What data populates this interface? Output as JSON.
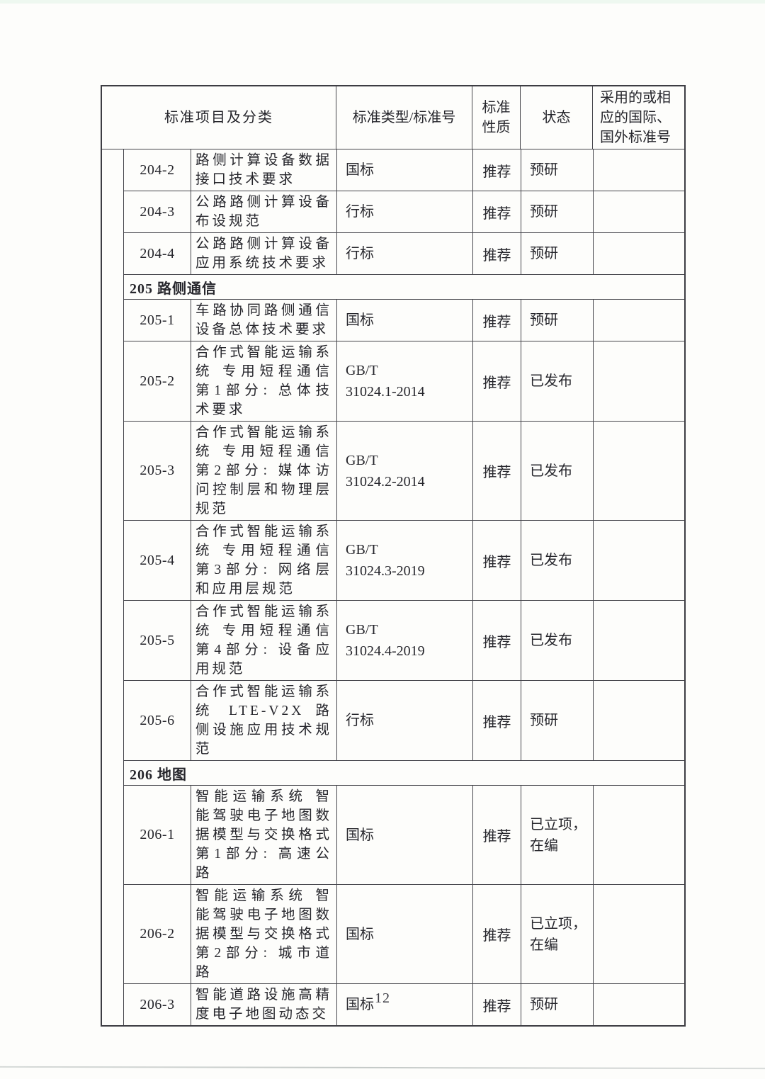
{
  "page": {
    "number": "12"
  },
  "table": {
    "headers": {
      "project": "标准项目及分类",
      "type": "标准类型/标准号",
      "nature": "标准\n性质",
      "status": "状态",
      "intl": "采用的或相\n应的国际、\n国外标准号"
    },
    "rows": [
      {
        "kind": "item",
        "id": "204-2",
        "desc": "路侧计算设备数据接口技术要求",
        "type": "国标",
        "nature": "推荐",
        "status": "预研",
        "intl": ""
      },
      {
        "kind": "item",
        "id": "204-3",
        "desc": "公路路侧计算设备布设规范",
        "type": "行标",
        "nature": "推荐",
        "status": "预研",
        "intl": ""
      },
      {
        "kind": "item",
        "id": "204-4",
        "desc": "公路路侧计算设备应用系统技术要求",
        "type": "行标",
        "nature": "推荐",
        "status": "预研",
        "intl": ""
      },
      {
        "kind": "section",
        "label": "205 路侧通信"
      },
      {
        "kind": "item",
        "id": "205-1",
        "desc": "车路协同路侧通信设备总体技术要求",
        "type": "国标",
        "nature": "推荐",
        "status": "预研",
        "intl": ""
      },
      {
        "kind": "item",
        "id": "205-2",
        "desc": "合作式智能运输系统 专用短程通信 第1部分: 总体技术要求",
        "type": "GB/T\n31024.1-2014",
        "nature": "推荐",
        "status": "已发布",
        "intl": ""
      },
      {
        "kind": "item",
        "id": "205-3",
        "desc": "合作式智能运输系统 专用短程通信 第2部分: 媒体访问控制层和物理层规范",
        "type": "GB/T\n31024.2-2014",
        "nature": "推荐",
        "status": "已发布",
        "intl": ""
      },
      {
        "kind": "item",
        "id": "205-4",
        "desc": "合作式智能运输系统 专用短程通信 第3部分: 网络层和应用层规范",
        "type": "GB/T\n31024.3-2019",
        "nature": "推荐",
        "status": "已发布",
        "intl": ""
      },
      {
        "kind": "item",
        "id": "205-5",
        "desc": "合作式智能运输系统 专用短程通信 第4部分: 设备应用规范",
        "type": "GB/T\n31024.4-2019",
        "nature": "推荐",
        "status": "已发布",
        "intl": ""
      },
      {
        "kind": "item",
        "id": "205-6",
        "desc": "合作式智能运输系统 LTE-V2X 路侧设施应用技术规范",
        "type": "行标",
        "nature": "推荐",
        "status": "预研",
        "intl": ""
      },
      {
        "kind": "section",
        "label": "206 地图"
      },
      {
        "kind": "item",
        "id": "206-1",
        "desc": "智能运输系统 智能驾驶电子地图数据模型与交换格式 第1部分: 高速公路",
        "type": "国标",
        "nature": "推荐",
        "status": "已立项，\n在编",
        "intl": ""
      },
      {
        "kind": "item",
        "id": "206-2",
        "desc": "智能运输系统 智能驾驶电子地图数据模型与交换格式 第2部分: 城市道路",
        "type": "国标",
        "nature": "推荐",
        "status": "已立项，\n在编",
        "intl": ""
      },
      {
        "kind": "item",
        "id": "206-3",
        "desc": "智能道路设施高精度电子地图动态交",
        "type": "国标",
        "nature": "推荐",
        "status": "预研",
        "intl": ""
      }
    ]
  }
}
